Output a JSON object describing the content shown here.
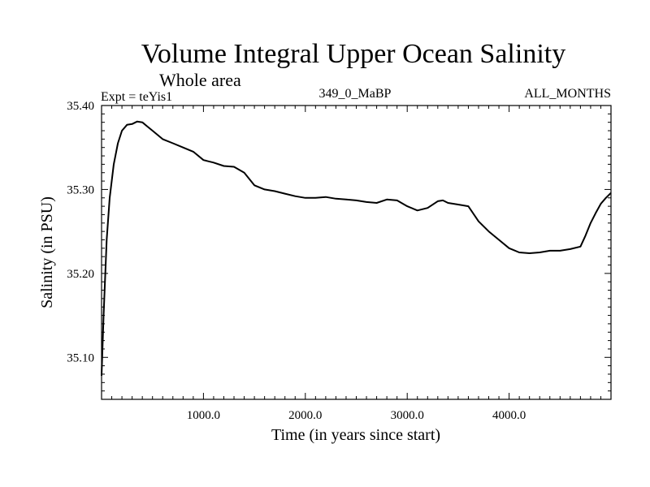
{
  "chart_data": {
    "type": "line",
    "title": "Volume Integral Upper Ocean Salinity",
    "subtitle": "Whole area",
    "experiment_label": "Expt = teYis1",
    "run_label": "349_0_MaBP",
    "period_label": "ALL_MONTHS",
    "xlabel": "Time (in years since start)",
    "ylabel": "Salinity (in PSU)",
    "xlim": [
      0,
      5000
    ],
    "ylim": [
      35.05,
      35.4
    ],
    "x_ticks": [
      1000,
      2000,
      3000,
      4000
    ],
    "x_tick_labels": [
      "1000.0",
      "2000.0",
      "3000.0",
      "4000.0"
    ],
    "y_ticks": [
      35.1,
      35.2,
      35.3,
      35.4
    ],
    "y_tick_labels": [
      "35.10",
      "35.20",
      "35.30",
      "35.40"
    ],
    "grid": false,
    "series": [
      {
        "name": "salinity",
        "color": "#000000",
        "x": [
          0,
          20,
          50,
          80,
          120,
          160,
          200,
          250,
          300,
          350,
          400,
          450,
          500,
          600,
          700,
          800,
          900,
          1000,
          1100,
          1200,
          1300,
          1400,
          1500,
          1600,
          1700,
          1800,
          1900,
          2000,
          2100,
          2200,
          2300,
          2400,
          2500,
          2600,
          2700,
          2800,
          2900,
          3000,
          3100,
          3200,
          3300,
          3350,
          3400,
          3500,
          3600,
          3700,
          3800,
          3900,
          4000,
          4100,
          4200,
          4300,
          4400,
          4500,
          4600,
          4700,
          4750,
          4800,
          4850,
          4900,
          4950,
          5000
        ],
        "values": [
          35.078,
          35.15,
          35.24,
          35.29,
          35.33,
          35.355,
          35.37,
          35.377,
          35.378,
          35.381,
          35.38,
          35.375,
          35.37,
          35.36,
          35.355,
          35.35,
          35.345,
          35.335,
          35.332,
          35.328,
          35.327,
          35.32,
          35.305,
          35.3,
          35.298,
          35.295,
          35.292,
          35.29,
          35.29,
          35.291,
          35.289,
          35.288,
          35.287,
          35.285,
          35.284,
          35.288,
          35.287,
          35.28,
          35.275,
          35.278,
          35.286,
          35.287,
          35.284,
          35.282,
          35.28,
          35.262,
          35.25,
          35.24,
          35.23,
          35.225,
          35.224,
          35.225,
          35.227,
          35.227,
          35.229,
          35.232,
          35.245,
          35.26,
          35.272,
          35.283,
          35.29,
          35.296
        ]
      }
    ]
  }
}
